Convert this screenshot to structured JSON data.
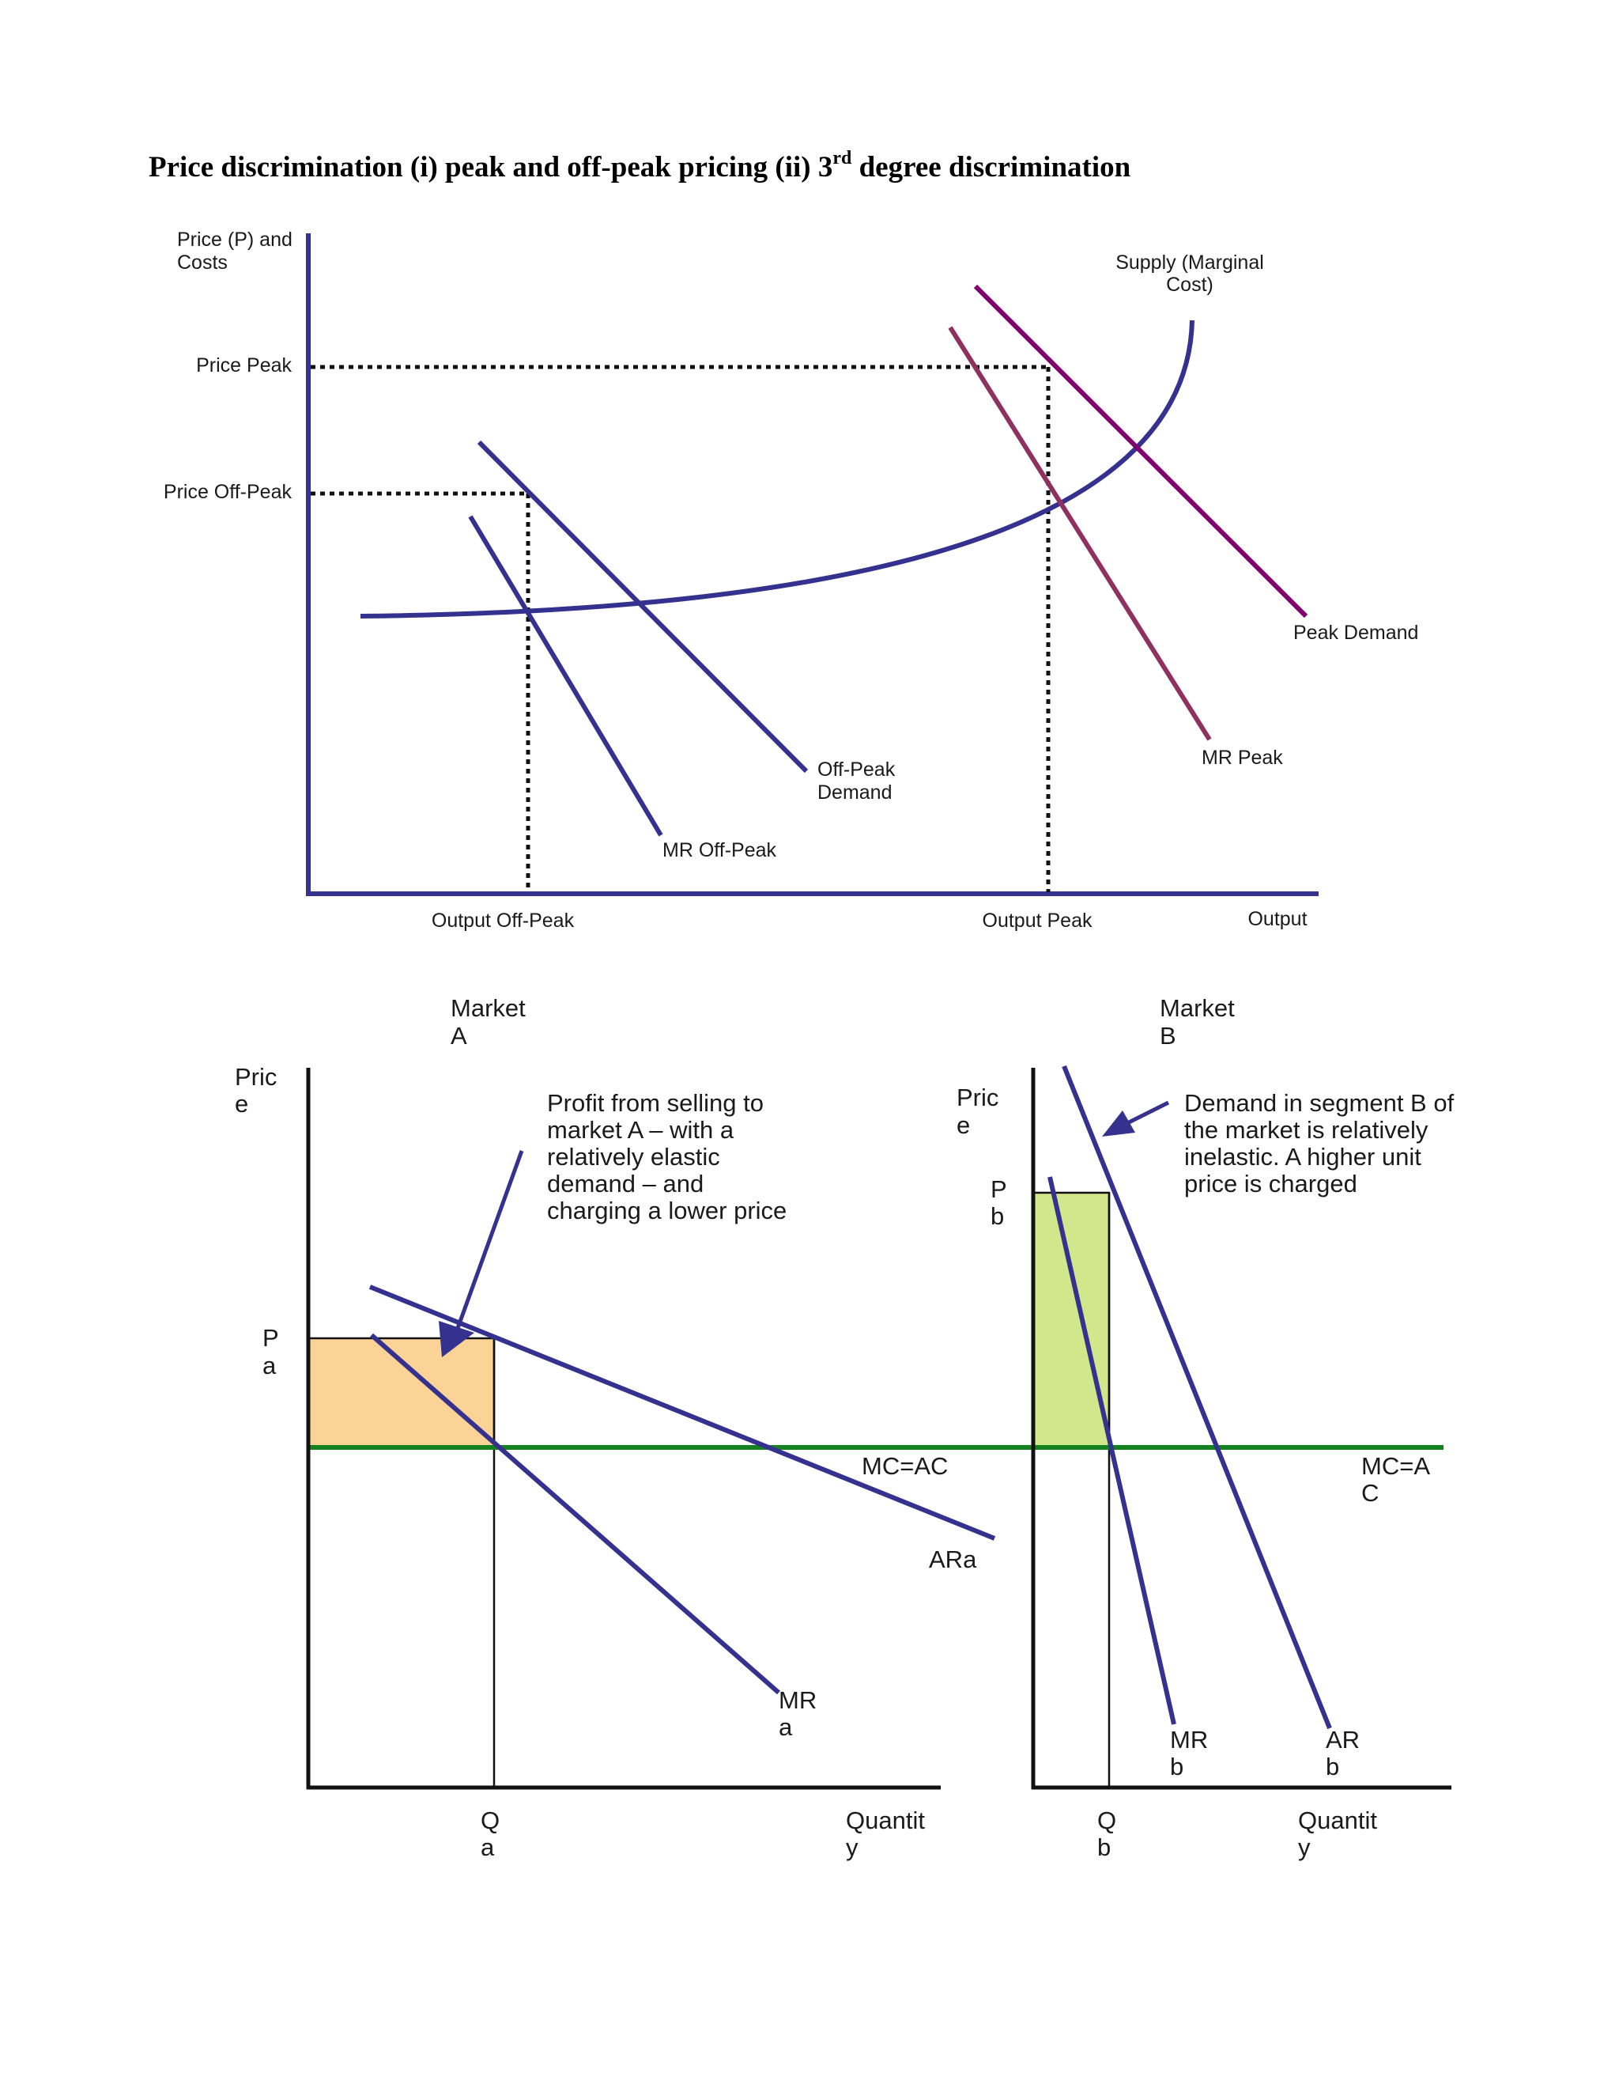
{
  "title": {
    "main": "Price discrimination (i) peak and off-peak pricing (ii) 3",
    "superscript": "rd",
    "tail": " degree discrimination"
  },
  "peak_chart": {
    "y_axis_label": [
      "Price (P) and",
      "Costs"
    ],
    "x_axis_label": "Output",
    "price_peak": "Price Peak",
    "price_offpeak": "Price Off-Peak",
    "output_offpeak": "Output Off-Peak",
    "output_peak": "Output Peak",
    "supply_label": [
      "Supply (Marginal",
      "Cost)"
    ],
    "peak_demand": "Peak Demand",
    "mr_peak": "MR Peak",
    "offpeak_demand": [
      "Off-Peak",
      "Demand"
    ],
    "mr_offpeak": "MR Off-Peak"
  },
  "market_a": {
    "heading": [
      "Market",
      "A"
    ],
    "price_axis": [
      "Pric",
      "e"
    ],
    "price_label": [
      "P",
      "a"
    ],
    "quantity_label": [
      "Q",
      "a"
    ],
    "x_axis_label": [
      "Quantit",
      "y"
    ],
    "mc_label": "MC=AC",
    "ar_label": "ARa",
    "mr_label": [
      "MR",
      "a"
    ],
    "annotation": [
      "Profit from selling to",
      "market A – with a",
      "relatively elastic",
      "demand – and",
      "charging a lower price"
    ]
  },
  "market_b": {
    "heading": [
      "Market",
      "B"
    ],
    "price_axis": [
      "Pric",
      "e"
    ],
    "price_label": [
      "P",
      "b"
    ],
    "quantity_label": [
      "Q",
      "b"
    ],
    "x_axis_label": [
      "Quantit",
      "y"
    ],
    "mc_label": [
      "MC=A",
      "C"
    ],
    "ar_label": [
      "AR",
      "b"
    ],
    "mr_label": [
      "MR",
      "b"
    ],
    "annotation": [
      "Demand in segment B of",
      "the market is relatively",
      "inelastic. A higher unit",
      "price is charged"
    ]
  },
  "colors": {
    "curve_blue": "#35318e",
    "peak_demand": "#80006e",
    "mr_peak": "#8e3060",
    "mc_green": "#14821e",
    "profit_a": "#fcd396",
    "profit_b": "#d2e78c",
    "axis_black": "#111111"
  }
}
